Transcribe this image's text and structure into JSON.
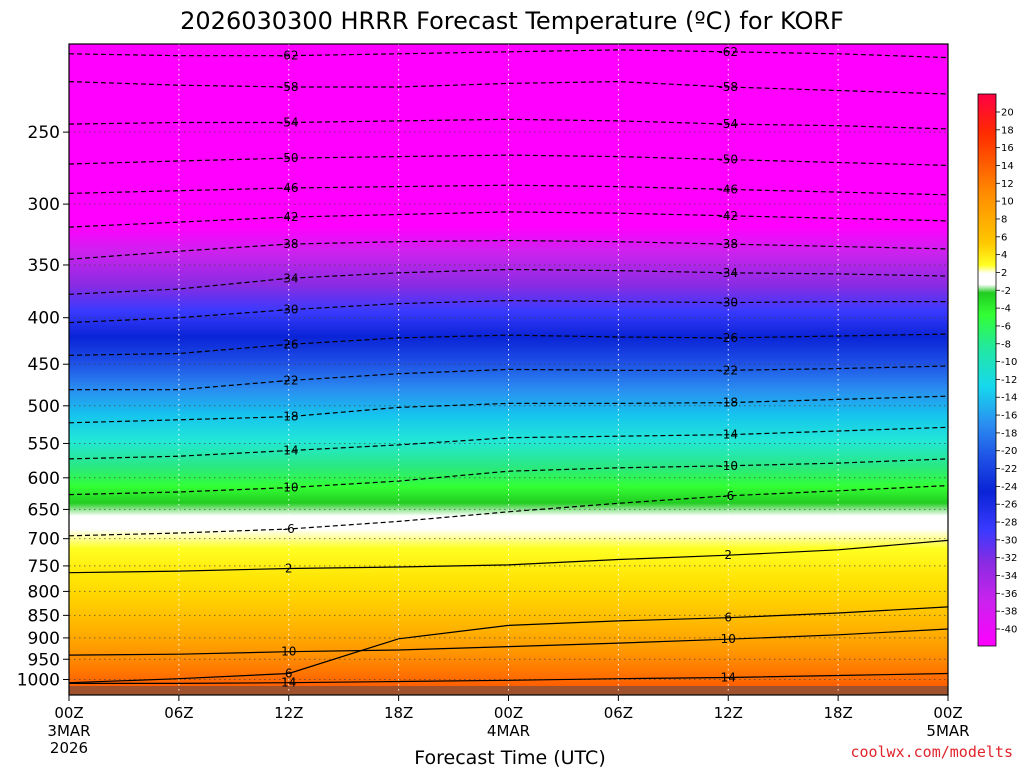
{
  "chart_data": {
    "type": "heatmap",
    "title": "2026030300 HRRR Forecast Temperature (ºC) for KORF",
    "xlabel": "Forecast Time (UTC)",
    "ylabel": "",
    "x_ticks": [
      "00Z",
      "06Z",
      "12Z",
      "18Z",
      "00Z",
      "06Z",
      "12Z",
      "18Z",
      "00Z"
    ],
    "x_tick_hours": [
      0,
      6,
      12,
      18,
      24,
      30,
      36,
      42,
      48
    ],
    "x_sublabels": [
      {
        "hour": 0,
        "lines": [
          "3MAR",
          "2026"
        ]
      },
      {
        "hour": 24,
        "lines": [
          "4MAR"
        ]
      },
      {
        "hour": 48,
        "lines": [
          "5MAR"
        ]
      }
    ],
    "xlim": [
      0,
      48
    ],
    "y_ticks": [
      "250",
      "300",
      "350",
      "400",
      "450",
      "500",
      "550",
      "600",
      "650",
      "700",
      "750",
      "800",
      "850",
      "900",
      "950",
      "1000"
    ],
    "y_tick_values": [
      250,
      300,
      350,
      400,
      450,
      500,
      550,
      600,
      650,
      700,
      750,
      800,
      850,
      900,
      950,
      1000
    ],
    "ylim": [
      1040,
      200
    ],
    "y_scale": "log-pressure",
    "colorbar_ticks": [
      "20",
      "18",
      "16",
      "14",
      "12",
      "10",
      "8",
      "6",
      "4",
      "2",
      "-2",
      "-4",
      "-6",
      "-8",
      "-10",
      "-12",
      "-14",
      "-16",
      "-18",
      "-20",
      "-22",
      "-24",
      "-26",
      "-28",
      "-30",
      "-32",
      "-34",
      "-36",
      "-38",
      "-40"
    ],
    "series": [
      {
        "name": "-62",
        "pressure": [
          205,
          206,
          206,
          205,
          204,
          203,
          204,
          205,
          207
        ]
      },
      {
        "name": "-58",
        "pressure": [
          220,
          222,
          223,
          223,
          221,
          220,
          223,
          225,
          227
        ]
      },
      {
        "name": "-54",
        "pressure": [
          245,
          244,
          244,
          243,
          242,
          243,
          245,
          246,
          248
        ]
      },
      {
        "name": "-50",
        "pressure": [
          271,
          269,
          267,
          266,
          265,
          266,
          268,
          270,
          272
        ]
      },
      {
        "name": "-46",
        "pressure": [
          292,
          290,
          288,
          287,
          286,
          287,
          289,
          291,
          293
        ]
      },
      {
        "name": "-42",
        "pressure": [
          318,
          314,
          310,
          308,
          306,
          307,
          309,
          311,
          313
        ]
      },
      {
        "name": "-38",
        "pressure": [
          345,
          338,
          332,
          330,
          329,
          330,
          332,
          334,
          336
        ]
      },
      {
        "name": "-34",
        "pressure": [
          377,
          372,
          362,
          357,
          354,
          355,
          357,
          358,
          360
        ]
      },
      {
        "name": "-30",
        "pressure": [
          405,
          400,
          392,
          386,
          383,
          384,
          385,
          384,
          384
        ]
      },
      {
        "name": "-26",
        "pressure": [
          440,
          438,
          428,
          421,
          418,
          420,
          421,
          419,
          417
        ]
      },
      {
        "name": "-22",
        "pressure": [
          480,
          480,
          469,
          461,
          456,
          457,
          457,
          455,
          452
        ]
      },
      {
        "name": "-18",
        "pressure": [
          522,
          518,
          514,
          502,
          497,
          497,
          496,
          492,
          488
        ]
      },
      {
        "name": "-14",
        "pressure": [
          572,
          568,
          560,
          552,
          542,
          540,
          538,
          533,
          528
        ]
      },
      {
        "name": "-10",
        "pressure": [
          626,
          622,
          615,
          605,
          590,
          585,
          582,
          578,
          572
        ]
      },
      {
        "name": "-6",
        "pressure": [
          695,
          690,
          683,
          670,
          654,
          640,
          628,
          620,
          612
        ]
      },
      {
        "name": "2",
        "pressure": [
          763,
          760,
          755,
          752,
          748,
          738,
          730,
          720,
          703
        ]
      },
      {
        "name": "6",
        "pressure": [
          1008,
          998,
          985,
          902,
          872,
          862,
          855,
          845,
          832
        ]
      },
      {
        "name": "10",
        "pressure": [
          940,
          938,
          932,
          928,
          920,
          912,
          903,
          893,
          880
        ]
      },
      {
        "name": "14",
        "pressure": [
          1010,
          1010,
          1008,
          1005,
          1002,
          998,
          995,
          990,
          985
        ]
      }
    ]
  },
  "credit": "coolwx.com/modelts"
}
